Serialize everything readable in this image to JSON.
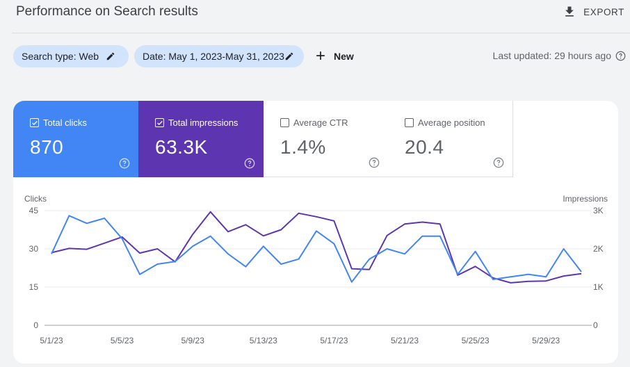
{
  "header": {
    "title": "Performance on Search results",
    "export_label": "EXPORT"
  },
  "filters": {
    "search_type": "Search type: Web",
    "date": "Date: May 1, 2023-May 31, 2023",
    "new_label": "New",
    "last_updated": "Last updated: 29 hours ago"
  },
  "metrics": {
    "clicks": {
      "label": "Total clicks",
      "value": "870",
      "checked": true,
      "color": "#4285f4"
    },
    "impressions": {
      "label": "Total impressions",
      "value": "63.3K",
      "checked": true,
      "color": "#5e35b1"
    },
    "ctr": {
      "label": "Average CTR",
      "value": "1.4%",
      "checked": false
    },
    "position": {
      "label": "Average position",
      "value": "20.4",
      "checked": false
    }
  },
  "chart_data": {
    "type": "line",
    "ylabel_left": "Clicks",
    "ylabel_right": "Impressions",
    "y_left_ticks": [
      "0",
      "15",
      "30",
      "45"
    ],
    "y_right_ticks": [
      "0",
      "1K",
      "2K",
      "3K"
    ],
    "ylim_left": [
      0,
      45
    ],
    "ylim_right": [
      0,
      3000
    ],
    "x_tick_labels": [
      "5/1/23",
      "5/5/23",
      "5/9/23",
      "5/13/23",
      "5/17/23",
      "5/21/23",
      "5/25/23",
      "5/29/23"
    ],
    "x": [
      "5/1/23",
      "5/2/23",
      "5/3/23",
      "5/4/23",
      "5/5/23",
      "5/6/23",
      "5/7/23",
      "5/8/23",
      "5/9/23",
      "5/10/23",
      "5/11/23",
      "5/12/23",
      "5/13/23",
      "5/14/23",
      "5/15/23",
      "5/16/23",
      "5/17/23",
      "5/18/23",
      "5/19/23",
      "5/20/23",
      "5/21/23",
      "5/22/23",
      "5/23/23",
      "5/24/23",
      "5/25/23",
      "5/26/23",
      "5/27/23",
      "5/28/23",
      "5/29/23",
      "5/30/23",
      "5/31/23"
    ],
    "series": [
      {
        "name": "Clicks",
        "axis": "left",
        "color": "#4285f4",
        "values": [
          28,
          43,
          40,
          42,
          34,
          20,
          24,
          25,
          31,
          35,
          28,
          23,
          31,
          24,
          26,
          37,
          32,
          17,
          26,
          30,
          28,
          35,
          35,
          20,
          29,
          18,
          19,
          20,
          19,
          30,
          21
        ]
      },
      {
        "name": "Impressions",
        "axis": "right",
        "color": "#5e35b1",
        "values": [
          1900,
          2010,
          1990,
          2150,
          2310,
          1890,
          2000,
          1660,
          2380,
          2970,
          2450,
          2630,
          2340,
          2500,
          2930,
          2840,
          2730,
          1480,
          1460,
          2350,
          2650,
          2700,
          2650,
          1310,
          1540,
          1240,
          1110,
          1150,
          1160,
          1290,
          1350
        ]
      }
    ]
  }
}
